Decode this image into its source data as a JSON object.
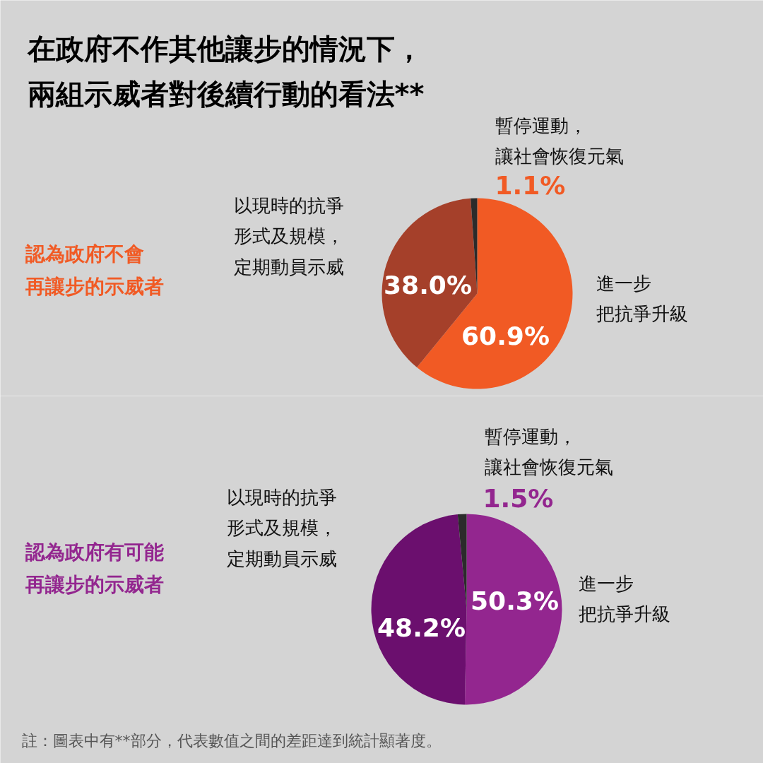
{
  "chart_data": [
    {
      "type": "pie",
      "title": "在政府不作其他讓步的情況下，兩組示威者對後續行動的看法**",
      "subtitle": "認為政府不會再讓步的示威者",
      "categories": [
        "進一步把抗爭升級",
        "以現時的抗爭形式及規模，定期動員示威",
        "暫停運動，讓社會恢復元氣"
      ],
      "values": [
        60.9,
        38.0,
        1.1
      ],
      "colors": [
        "#f15a24",
        "#a5402a",
        "#2b2b2b"
      ],
      "value_labels": [
        "60.9%",
        "38.0%",
        "1.1%"
      ]
    },
    {
      "type": "pie",
      "subtitle": "認為政府有可能再讓步的示威者",
      "categories": [
        "進一步把抗爭升級",
        "以現時的抗爭形式及規模，定期動員示威",
        "暫停運動，讓社會恢復元氣"
      ],
      "values": [
        50.3,
        48.2,
        1.5
      ],
      "colors": [
        "#93268f",
        "#6b0f6e",
        "#2b2b2b"
      ],
      "value_labels": [
        "50.3%",
        "48.2%",
        "1.5%"
      ],
      "annotations": [
        "註：圖表中有**部分，代表數值之間的差距達到統計顯著度。"
      ]
    }
  ]
}
